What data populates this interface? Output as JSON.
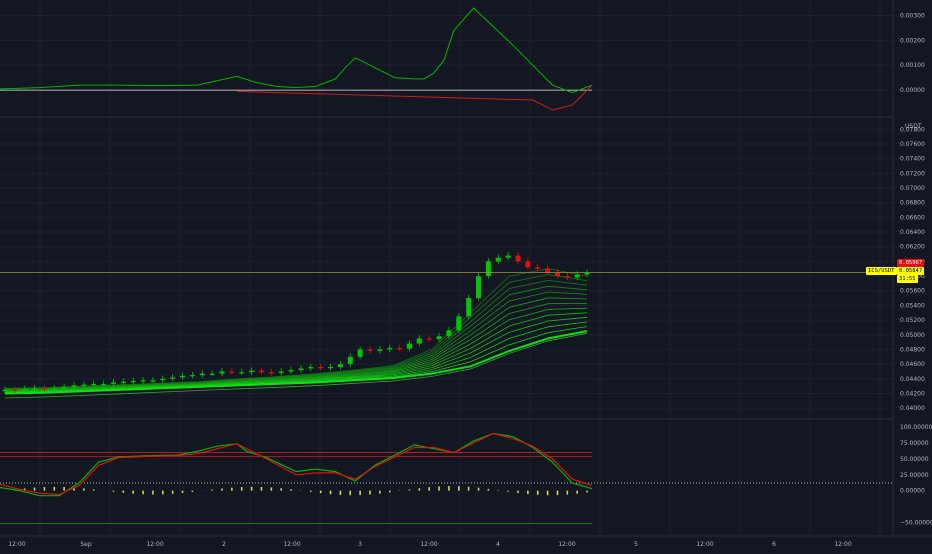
{
  "chart_data": [
    {
      "type": "line",
      "title": "",
      "y_ticks": [
        "0.00300",
        "0.00200",
        "0.00100",
        "0.00000"
      ],
      "ylim": [
        -0.0008,
        0.0033
      ],
      "zero_line": 0,
      "series": [
        {
          "color": "#00b300",
          "x": [
            0,
            4,
            8,
            12,
            16,
            20,
            24,
            26,
            28,
            30,
            32,
            34,
            35,
            36,
            37,
            38,
            40,
            42,
            43,
            44,
            45,
            46,
            48,
            52,
            56,
            58,
            60
          ],
          "values": [
            5e-05,
            0.0001,
            0.0002,
            0.0002,
            0.00018,
            0.0002,
            0.00055,
            0.0003,
            0.00015,
            0.0001,
            0.00015,
            0.00045,
            0.0009,
            0.0013,
            0.0011,
            0.0009,
            0.0005,
            0.00045,
            0.00045,
            0.0007,
            0.0012,
            0.0024,
            0.0033,
            0.0018,
            0.0002,
            -0.0001,
            0.0002
          ]
        },
        {
          "color": "#c81e1e",
          "x": [
            24,
            28,
            54,
            56,
            58,
            60
          ],
          "values": [
            -5e-05,
            -0.0001,
            -0.0004,
            -0.0008,
            -0.0006,
            0.0002
          ]
        }
      ],
      "colors": {
        "positive": "#00b300",
        "negative": "#c81e1e"
      }
    },
    {
      "type": "candlestick",
      "unit": "USDT",
      "y_ticks": [
        "0.07800",
        "0.07600",
        "0.07400",
        "0.07200",
        "0.07000",
        "0.06800",
        "0.06600",
        "0.06400",
        "0.06200",
        "0.06000",
        "0.05800",
        "0.05600",
        "0.05400",
        "0.05200",
        "0.05000",
        "0.04800",
        "0.04600",
        "0.04400",
        "0.04200",
        "0.04000"
      ],
      "ylim": [
        0.0392,
        0.079
      ],
      "last_price": 0.05847,
      "series_close": [
        0.0425,
        0.0424,
        0.0426,
        0.0427,
        0.0426,
        0.0427,
        0.0429,
        0.0431,
        0.0432,
        0.0433,
        0.0433,
        0.0435,
        0.0436,
        0.0437,
        0.0438,
        0.0438,
        0.044,
        0.0442,
        0.0444,
        0.0445,
        0.0447,
        0.0447,
        0.045,
        0.0449,
        0.0449,
        0.0451,
        0.0449,
        0.0448,
        0.045,
        0.0452,
        0.0454,
        0.0456,
        0.0455,
        0.0456,
        0.046,
        0.047,
        0.048,
        0.0478,
        0.048,
        0.0482,
        0.0481,
        0.0488,
        0.0495,
        0.0494,
        0.0498,
        0.0506,
        0.0525,
        0.055,
        0.058,
        0.06,
        0.0605,
        0.0608,
        0.06,
        0.0592,
        0.059,
        0.0585,
        0.058,
        0.0578,
        0.0582,
        0.05847
      ],
      "ribbon_top": [
        0.0427,
        0.0428,
        0.043,
        0.0432,
        0.0434,
        0.0436,
        0.044,
        0.0443,
        0.0447,
        0.0452,
        0.0458,
        0.048,
        0.053,
        0.058,
        0.059,
        0.058
      ],
      "ribbon_bot": [
        0.042,
        0.0421,
        0.0423,
        0.0425,
        0.0427,
        0.0429,
        0.0431,
        0.0433,
        0.0435,
        0.0438,
        0.0441,
        0.0447,
        0.0457,
        0.0478,
        0.0495,
        0.0505
      ],
      "colors": {
        "up": "#00c800",
        "down": "#e01010",
        "ribbon": "#22dd22"
      }
    },
    {
      "type": "line",
      "y_ticks": [
        "100.00000",
        "75.00000",
        "50.00000",
        "25.00000",
        "0.00000",
        "−50.00000"
      ],
      "ylim": [
        -62,
        105
      ],
      "dotted_level": 12,
      "levels": [
        {
          "value": 60,
          "color": "#c81e1e"
        },
        {
          "value": 54,
          "color": "#c81e1e"
        },
        {
          "value": -52,
          "color": "#1e8c1e"
        }
      ],
      "series": [
        {
          "name": "",
          "color": "#00b300",
          "x": [
            0,
            2,
            4,
            6,
            8,
            10,
            12,
            15,
            18,
            20,
            22,
            24,
            25,
            27,
            30,
            32,
            34,
            36,
            38,
            42,
            44,
            46,
            48,
            50,
            52,
            54,
            56,
            58,
            60
          ],
          "values": [
            5,
            0,
            -8,
            -8,
            12,
            45,
            53,
            55,
            56,
            62,
            70,
            74,
            62,
            52,
            30,
            34,
            30,
            15,
            40,
            72,
            66,
            60,
            78,
            90,
            85,
            68,
            45,
            12,
            3
          ]
        },
        {
          "name": "",
          "color": "#e01010",
          "x": [
            0,
            2,
            4,
            6,
            8,
            10,
            12,
            15,
            18,
            20,
            22,
            24,
            25,
            27,
            30,
            32,
            34,
            36,
            38,
            42,
            44,
            46,
            48,
            50,
            52,
            54,
            56,
            58,
            60
          ],
          "values": [
            10,
            2,
            -4,
            -6,
            8,
            40,
            52,
            54,
            55,
            58,
            66,
            74,
            66,
            50,
            25,
            28,
            28,
            18,
            38,
            68,
            68,
            60,
            75,
            90,
            82,
            70,
            50,
            18,
            8
          ]
        }
      ]
    }
  ],
  "price_tags": {
    "pair_label": "ICS/USDT",
    "price_red": "0.05967",
    "price_yellow": "0.05847",
    "countdown": "31:55"
  },
  "time_axis": [
    "12:00",
    "Sep",
    "12:00",
    "2",
    "12:00",
    "3",
    "12:00",
    "4",
    "12:00",
    "5",
    "12:00",
    "6",
    "12:00"
  ],
  "colors": {
    "bg": "#131722",
    "grid": "#1f2433",
    "text": "#b2b5be",
    "tag_yellow": "#ffff00",
    "tag_red": "#e01010"
  }
}
